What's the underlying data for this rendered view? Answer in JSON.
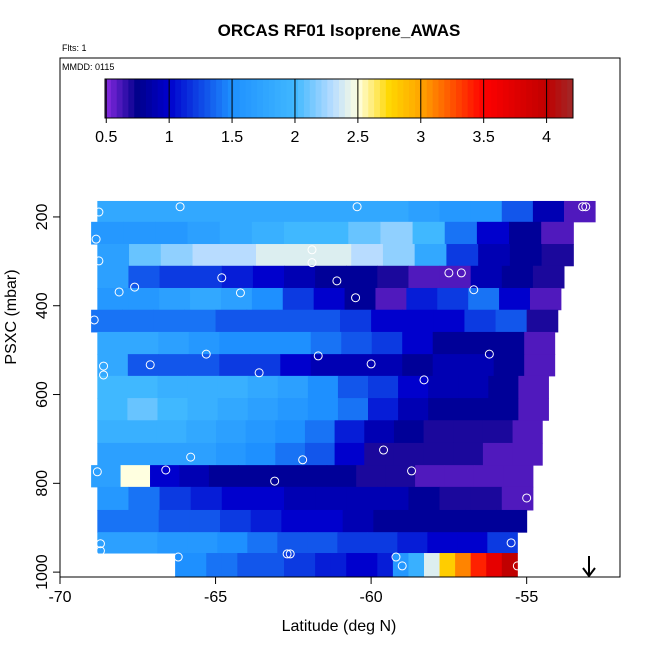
{
  "chart_data": {
    "type": "heatmap",
    "title": "ORCAS RF01 Isoprene_AWAS",
    "notes": [
      "Flts: 1",
      "MMDD: 0115"
    ],
    "x_label": "Latitude (deg N)",
    "y_label": "PSXC (mbar)",
    "xlim": [
      -70,
      -52
    ],
    "ylim": [
      -158,
      1011
    ],
    "xticks": [
      -70,
      -65,
      -60,
      -55
    ],
    "yticks": [
      200,
      400,
      600,
      800,
      1000
    ],
    "zlim": [
      0.49,
      4.21
    ],
    "zticks": [
      0.5,
      1.0,
      1.5,
      2.0,
      2.5,
      3.0,
      3.5,
      4.0
    ],
    "colormap": {
      "values": [
        0.49,
        0.75,
        1.0,
        1.5,
        2.0,
        2.3,
        2.5,
        2.75,
        3.0,
        3.5,
        4.0,
        4.21
      ],
      "colors": [
        "#8a2be2",
        "#00008b",
        "#0000cd",
        "#1e90ff",
        "#40b8ff",
        "#b8dcff",
        "#ffffe0",
        "#ffd700",
        "#ffa500",
        "#ff0000",
        "#c00000",
        "#a02828"
      ]
    },
    "rows": [
      {
        "p": [
          164,
          211
        ],
        "lat": [
          -68.8,
          -52.8
        ],
        "values": [
          1.8,
          1.8,
          1.8,
          1.8,
          1.8,
          1.8,
          1.8,
          1.8,
          1.8,
          1.8,
          1.7,
          1.6,
          1.6,
          1.3,
          0.9,
          0.6
        ]
      },
      {
        "p": [
          211,
          261
        ],
        "lat": [
          -69.0,
          -53.5
        ],
        "values": [
          1.6,
          1.6,
          1.6,
          1.7,
          1.8,
          1.9,
          2.0,
          2.0,
          2.1,
          2.2,
          2.0,
          1.4,
          1.0,
          0.8,
          0.6
        ]
      },
      {
        "p": [
          261,
          310
        ],
        "lat": [
          -68.8,
          -53.5
        ],
        "values": [
          1.7,
          2.1,
          2.2,
          2.3,
          2.3,
          2.4,
          2.4,
          2.4,
          2.3,
          2.2,
          1.8,
          1.2,
          0.9,
          0.8,
          0.7
        ]
      },
      {
        "p": [
          310,
          360
        ],
        "lat": [
          -68.8,
          -53.8
        ],
        "values": [
          1.7,
          1.3,
          1.2,
          1.2,
          1.1,
          1.0,
          0.9,
          0.8,
          0.8,
          0.7,
          0.6,
          0.6,
          0.9,
          0.8,
          0.7
        ]
      },
      {
        "p": [
          360,
          409
        ],
        "lat": [
          -68.8,
          -53.9
        ],
        "values": [
          1.6,
          1.6,
          1.7,
          1.8,
          1.7,
          1.5,
          1.2,
          1.0,
          0.8,
          0.6,
          1.1,
          1.2,
          1.4,
          1.0,
          0.6
        ]
      },
      {
        "p": [
          409,
          459
        ],
        "lat": [
          -69.0,
          -54.0
        ],
        "values": [
          1.4,
          1.4,
          1.4,
          1.4,
          1.3,
          1.3,
          1.3,
          1.3,
          1.2,
          1.0,
          1.0,
          1.0,
          1.2,
          1.3,
          0.7
        ]
      },
      {
        "p": [
          459,
          509
        ],
        "lat": [
          -68.8,
          -54.1
        ],
        "values": [
          1.8,
          1.8,
          1.7,
          1.6,
          1.5,
          1.5,
          1.5,
          1.4,
          1.3,
          1.2,
          1.0,
          0.8,
          0.8,
          0.8,
          0.6
        ]
      },
      {
        "p": [
          509,
          558
        ],
        "lat": [
          -68.8,
          -54.1
        ],
        "values": [
          1.8,
          1.3,
          1.3,
          1.3,
          1.2,
          1.2,
          1.0,
          0.9,
          0.9,
          0.9,
          0.8,
          0.9,
          0.9,
          0.8,
          0.6
        ]
      },
      {
        "p": [
          558,
          608
        ],
        "lat": [
          -68.8,
          -54.3
        ],
        "values": [
          2.0,
          2.0,
          1.9,
          1.9,
          1.9,
          1.8,
          1.7,
          1.5,
          1.3,
          1.2,
          1.0,
          0.9,
          0.9,
          0.8,
          0.6
        ]
      },
      {
        "p": [
          608,
          658
        ],
        "lat": [
          -68.8,
          -54.3
        ],
        "values": [
          2.0,
          2.1,
          2.0,
          1.9,
          1.8,
          1.7,
          1.6,
          1.5,
          1.4,
          1.1,
          0.9,
          0.8,
          0.8,
          0.8,
          0.6
        ]
      },
      {
        "p": [
          658,
          709
        ],
        "lat": [
          -68.8,
          -54.5
        ],
        "values": [
          1.9,
          1.9,
          1.9,
          1.8,
          1.7,
          1.6,
          1.5,
          1.4,
          1.1,
          0.9,
          0.8,
          0.7,
          0.7,
          0.7,
          0.6
        ]
      },
      {
        "p": [
          709,
          759
        ],
        "lat": [
          -68.8,
          -54.5
        ],
        "values": [
          1.7,
          1.7,
          1.7,
          1.7,
          1.6,
          1.5,
          1.4,
          1.3,
          1.0,
          0.7,
          0.7,
          0.7,
          0.7,
          0.6,
          0.6
        ]
      },
      {
        "p": [
          759,
          808
        ],
        "lat": [
          -69.0,
          -54.8
        ],
        "values": [
          1.7,
          2.5,
          1.0,
          0.9,
          0.8,
          0.8,
          0.8,
          0.8,
          0.8,
          0.7,
          0.7,
          0.6,
          0.6,
          0.6,
          0.6
        ]
      },
      {
        "p": [
          808,
          860
        ],
        "lat": [
          -68.8,
          -54.8
        ],
        "values": [
          1.6,
          1.4,
          1.2,
          1.1,
          1.0,
          1.0,
          0.9,
          0.9,
          0.9,
          0.9,
          0.8,
          0.7,
          0.7,
          0.6
        ]
      },
      {
        "p": [
          860,
          910
        ],
        "lat": [
          -68.8,
          -55.0
        ],
        "values": [
          1.4,
          1.4,
          1.3,
          1.3,
          1.2,
          1.1,
          1.0,
          1.0,
          0.9,
          0.8,
          0.8,
          0.8,
          0.8,
          0.8
        ]
      },
      {
        "p": [
          910,
          957
        ],
        "lat": [
          -68.8,
          -55.3
        ],
        "values": [
          1.7,
          1.7,
          1.6,
          1.6,
          1.5,
          1.4,
          1.3,
          1.3,
          1.2,
          1.2,
          1.1,
          1.0,
          1.0,
          1.2
        ]
      },
      {
        "p": [
          957,
          1011
        ],
        "lat": [
          -66.3,
          -55.3
        ],
        "values": [
          1.5,
          1.5,
          1.4,
          1.4,
          1.3,
          1.3,
          1.3,
          1.2,
          1.2,
          1.1,
          1.1,
          1.0,
          1.0,
          1.1,
          1.6,
          1.9,
          2.4,
          2.8,
          3.1,
          3.4,
          3.7,
          4.0
        ]
      }
    ],
    "samples": {
      "lat": [
        -68.75,
        -66.14,
        -60.45,
        -53.2,
        -53.1,
        -68.84,
        -68.75,
        -61.9,
        -61.9,
        -68.1,
        -67.6,
        -64.8,
        -64.2,
        -61.1,
        -60.5,
        -57.5,
        -57.1,
        -56.7,
        -68.9,
        -65.3,
        -61.7,
        -56.2,
        -68.6,
        -68.6,
        -67.1,
        -63.6,
        -60.0,
        -58.3,
        -65.8,
        -62.2,
        -59.6,
        -68.8,
        -66.6,
        -63.1,
        -58.7,
        -55.0,
        -55.5,
        -68.7,
        -68.7,
        -66.2,
        -62.7,
        -62.6,
        -59.2,
        -59.0,
        -55.3
      ],
      "p": [
        189,
        177,
        177,
        177,
        177,
        250,
        299,
        274,
        303,
        369,
        358,
        337,
        371,
        344,
        382,
        326,
        326,
        364,
        432,
        509,
        513,
        509,
        536,
        556,
        533,
        551,
        531,
        567,
        741,
        747,
        725,
        774,
        770,
        795,
        772,
        833,
        934,
        936,
        952,
        966,
        959,
        959,
        966,
        986,
        986
      ]
    }
  }
}
